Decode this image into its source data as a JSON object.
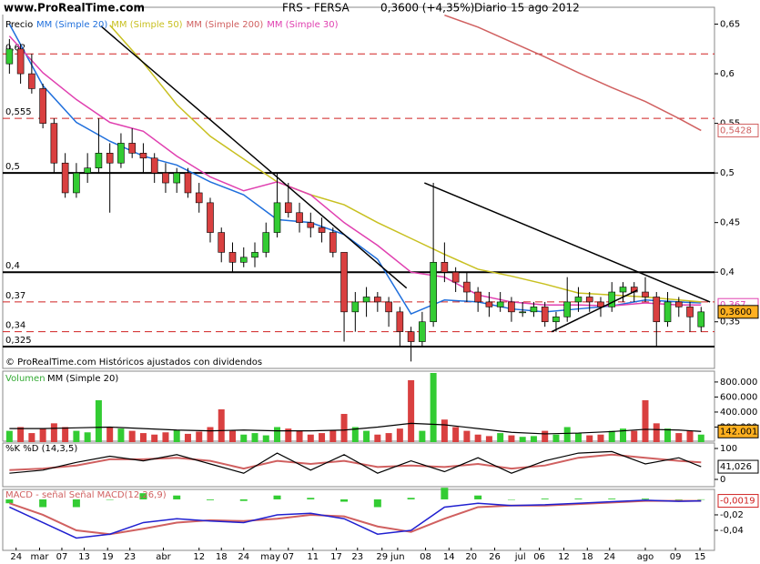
{
  "chart_data": {
    "type": "candlestick",
    "logo": "www.ProRealTime.com",
    "ticker": "FRS - FERSA",
    "last_price": "0,3600 (+4,35%)",
    "period": "Diario",
    "date": "15 ago 2012",
    "footer": "© ProRealTime.com Históricos ajustados con dividendos",
    "price_label": "Precio",
    "up_color": "#33cc33",
    "down_color": "#d94040",
    "xlim": [
      -0.6,
      63.2
    ],
    "xticks": [
      {
        "value": 0.6,
        "label": "24"
      },
      {
        "value": 2.7,
        "label": "mar"
      },
      {
        "value": 4.7,
        "label": "07"
      },
      {
        "value": 6.7,
        "label": "13"
      },
      {
        "value": 8.8,
        "label": "19"
      },
      {
        "value": 10.8,
        "label": "23"
      },
      {
        "value": 13.8,
        "label": "abr"
      },
      {
        "value": 17,
        "label": "12"
      },
      {
        "value": 19,
        "label": "18"
      },
      {
        "value": 21,
        "label": "24"
      },
      {
        "value": 23.4,
        "label": "may"
      },
      {
        "value": 25,
        "label": "07"
      },
      {
        "value": 27.2,
        "label": "11"
      },
      {
        "value": 29.3,
        "label": "17"
      },
      {
        "value": 31.2,
        "label": "23"
      },
      {
        "value": 33.4,
        "label": "29"
      },
      {
        "value": 34.8,
        "label": "jun"
      },
      {
        "value": 37.3,
        "label": "08"
      },
      {
        "value": 39.4,
        "label": "14"
      },
      {
        "value": 41.4,
        "label": "20"
      },
      {
        "value": 43.5,
        "label": "26"
      },
      {
        "value": 45.8,
        "label": "jul"
      },
      {
        "value": 47.5,
        "label": "06"
      },
      {
        "value": 49.7,
        "label": "12"
      },
      {
        "value": 51.8,
        "label": "18"
      },
      {
        "value": 53.8,
        "label": "24"
      },
      {
        "value": 57,
        "label": "ago"
      },
      {
        "value": 59.7,
        "label": "09"
      },
      {
        "value": 61.9,
        "label": "15"
      }
    ],
    "ylim": [
      0.303,
      0.667
    ],
    "yticks": [
      {
        "value": 0.65,
        "label": "0,65"
      },
      {
        "value": 0.6,
        "label": "0,6"
      },
      {
        "value": 0.55,
        "label": "0,55"
      },
      {
        "value": 0.5,
        "label": "0,5"
      },
      {
        "value": 0.45,
        "label": "0,45"
      },
      {
        "value": 0.4,
        "label": "0,4"
      },
      {
        "value": 0.35,
        "label": "0,35"
      }
    ],
    "last_label": "0,3600",
    "ohlc": [
      [
        0.61,
        0.635,
        0.6,
        0.625
      ],
      [
        0.625,
        0.63,
        0.59,
        0.6
      ],
      [
        0.6,
        0.62,
        0.58,
        0.585
      ],
      [
        0.585,
        0.59,
        0.545,
        0.55
      ],
      [
        0.55,
        0.555,
        0.5,
        0.51
      ],
      [
        0.51,
        0.52,
        0.475,
        0.48
      ],
      [
        0.48,
        0.51,
        0.475,
        0.5
      ],
      [
        0.5,
        0.52,
        0.49,
        0.505
      ],
      [
        0.505,
        0.555,
        0.5,
        0.52
      ],
      [
        0.52,
        0.53,
        0.46,
        0.51
      ],
      [
        0.51,
        0.54,
        0.505,
        0.53
      ],
      [
        0.53,
        0.545,
        0.515,
        0.52
      ],
      [
        0.52,
        0.53,
        0.5,
        0.515
      ],
      [
        0.515,
        0.52,
        0.49,
        0.5
      ],
      [
        0.5,
        0.51,
        0.48,
        0.49
      ],
      [
        0.49,
        0.505,
        0.48,
        0.5
      ],
      [
        0.5,
        0.505,
        0.475,
        0.48
      ],
      [
        0.48,
        0.49,
        0.46,
        0.47
      ],
      [
        0.47,
        0.475,
        0.43,
        0.44
      ],
      [
        0.44,
        0.445,
        0.41,
        0.42
      ],
      [
        0.42,
        0.43,
        0.4,
        0.41
      ],
      [
        0.41,
        0.425,
        0.405,
        0.415
      ],
      [
        0.415,
        0.43,
        0.405,
        0.42
      ],
      [
        0.42,
        0.45,
        0.415,
        0.44
      ],
      [
        0.44,
        0.5,
        0.435,
        0.47
      ],
      [
        0.47,
        0.49,
        0.455,
        0.46
      ],
      [
        0.46,
        0.47,
        0.44,
        0.45
      ],
      [
        0.45,
        0.46,
        0.435,
        0.445
      ],
      [
        0.445,
        0.455,
        0.43,
        0.44
      ],
      [
        0.44,
        0.445,
        0.415,
        0.42
      ],
      [
        0.42,
        0.42,
        0.33,
        0.36
      ],
      [
        0.36,
        0.38,
        0.34,
        0.37
      ],
      [
        0.37,
        0.385,
        0.355,
        0.375
      ],
      [
        0.375,
        0.38,
        0.36,
        0.37
      ],
      [
        0.37,
        0.375,
        0.345,
        0.36
      ],
      [
        0.36,
        0.365,
        0.325,
        0.34
      ],
      [
        0.34,
        0.345,
        0.31,
        0.33
      ],
      [
        0.33,
        0.36,
        0.325,
        0.35
      ],
      [
        0.35,
        0.49,
        0.345,
        0.41
      ],
      [
        0.41,
        0.43,
        0.39,
        0.4
      ],
      [
        0.4,
        0.405,
        0.38,
        0.39
      ],
      [
        0.39,
        0.4,
        0.37,
        0.38
      ],
      [
        0.38,
        0.385,
        0.36,
        0.37
      ],
      [
        0.37,
        0.38,
        0.355,
        0.365
      ],
      [
        0.365,
        0.38,
        0.36,
        0.37
      ],
      [
        0.37,
        0.375,
        0.35,
        0.36
      ],
      [
        0.36,
        0.37,
        0.355,
        0.36
      ],
      [
        0.36,
        0.37,
        0.355,
        0.365
      ],
      [
        0.365,
        0.37,
        0.345,
        0.35
      ],
      [
        0.35,
        0.36,
        0.34,
        0.355
      ],
      [
        0.355,
        0.395,
        0.35,
        0.37
      ],
      [
        0.37,
        0.385,
        0.36,
        0.375
      ],
      [
        0.375,
        0.38,
        0.36,
        0.37
      ],
      [
        0.37,
        0.375,
        0.355,
        0.365
      ],
      [
        0.365,
        0.39,
        0.36,
        0.38
      ],
      [
        0.38,
        0.39,
        0.37,
        0.385
      ],
      [
        0.385,
        0.39,
        0.37,
        0.38
      ],
      [
        0.38,
        0.395,
        0.37,
        0.375
      ],
      [
        0.375,
        0.38,
        0.325,
        0.35
      ],
      [
        0.35,
        0.38,
        0.345,
        0.37
      ],
      [
        0.37,
        0.375,
        0.355,
        0.365
      ],
      [
        0.365,
        0.37,
        0.34,
        0.355
      ],
      [
        0.345,
        0.365,
        0.34,
        0.36
      ]
    ],
    "series": [
      {
        "name": "MM (Simple 20)",
        "color": "#1f6fdc",
        "x": [
          0,
          3,
          6,
          9,
          12,
          15,
          18,
          21,
          24,
          27,
          30,
          33,
          36,
          39,
          42,
          45,
          48,
          51,
          54,
          57,
          60,
          62
        ],
        "values": [
          0.65,
          0.588,
          0.551,
          0.532,
          0.517,
          0.508,
          0.491,
          0.478,
          0.453,
          0.45,
          0.438,
          0.413,
          0.358,
          0.372,
          0.37,
          0.363,
          0.36,
          0.363,
          0.366,
          0.372,
          0.37,
          0.369
        ]
      },
      {
        "name": "MM (Simple 50)",
        "color": "#c8c020",
        "x": [
          0,
          3,
          6,
          9,
          12,
          15,
          18,
          21,
          24,
          27,
          30,
          33,
          36,
          39,
          42,
          45,
          48,
          51,
          54,
          57,
          60,
          62
        ],
        "values": [
          null,
          null,
          null,
          0.649,
          0.611,
          0.569,
          0.537,
          0.514,
          0.491,
          0.478,
          0.468,
          0.45,
          0.434,
          0.418,
          0.403,
          0.396,
          0.388,
          0.379,
          0.377,
          0.375,
          0.372,
          0.37
        ]
      },
      {
        "name": "MM (Simple 200)",
        "color": "#d06060",
        "x": [
          0,
          3,
          6,
          9,
          12,
          15,
          18,
          21,
          24,
          27,
          30,
          33,
          36,
          39,
          42,
          45,
          48,
          51,
          54,
          57,
          60,
          62
        ],
        "values": [
          null,
          null,
          null,
          null,
          null,
          null,
          null,
          null,
          null,
          null,
          null,
          null,
          null,
          0.659,
          0.647,
          0.632,
          0.617,
          0.601,
          0.586,
          0.572,
          0.555,
          0.5428
        ],
        "last_label": "0,5428"
      },
      {
        "name": "MM (Simple 30)",
        "color": "#e040b0",
        "x": [
          0,
          3,
          6,
          9,
          12,
          15,
          18,
          21,
          24,
          27,
          30,
          33,
          36,
          39,
          42,
          45,
          48,
          51,
          54,
          57,
          60,
          62
        ],
        "values": [
          0.638,
          0.601,
          0.574,
          0.551,
          0.542,
          0.517,
          0.496,
          0.482,
          0.491,
          0.478,
          0.45,
          0.427,
          0.4,
          0.395,
          0.377,
          0.37,
          0.367,
          0.367,
          0.366,
          0.369,
          0.367,
          0.367
        ],
        "last_label": "0,367"
      }
    ],
    "levels": [
      {
        "value": 0.62,
        "label": "0,62",
        "style": "dashed"
      },
      {
        "value": 0.555,
        "label": "0,555",
        "style": "dashed"
      },
      {
        "value": 0.5,
        "label": "0,5",
        "style": "solid"
      },
      {
        "value": 0.4,
        "label": "0,4",
        "style": "solid"
      },
      {
        "value": 0.37,
        "label": "0,37",
        "style": "dashed"
      },
      {
        "value": 0.34,
        "label": "0,34",
        "style": "dashed"
      },
      {
        "value": 0.325,
        "label": "0,325",
        "style": "solid"
      }
    ],
    "trendlines": [
      [
        8.2,
        0.648,
        35.6,
        0.384
      ],
      [
        37.2,
        0.49,
        62.8,
        0.37
      ],
      [
        48.6,
        0.34,
        56.3,
        0.382
      ]
    ],
    "volume": {
      "title": "Volumen",
      "ma_name": "MM (Simple 20)",
      "ylim": [
        0,
        920000
      ],
      "yticks": [
        {
          "value": 800000,
          "label": "800.000"
        },
        {
          "value": 600000,
          "label": "600.000"
        },
        {
          "value": 400000,
          "label": "400.000"
        },
        {
          "value": 200000,
          "label": "200.000"
        }
      ],
      "values": [
        150000,
        200000,
        120000,
        180000,
        250000,
        200000,
        150000,
        130000,
        557000,
        200000,
        180000,
        150000,
        120000,
        100000,
        130000,
        160000,
        110000,
        140000,
        200000,
        436000,
        150000,
        100000,
        120000,
        90000,
        200000,
        180000,
        150000,
        100000,
        120000,
        160000,
        375000,
        200000,
        150000,
        100000,
        120000,
        180000,
        824000,
        150000,
        920000,
        300000,
        200000,
        150000,
        100000,
        80000,
        120000,
        90000,
        70000,
        80000,
        150000,
        100000,
        200000,
        120000,
        90000,
        100000,
        150000,
        180000,
        150000,
        557000,
        250000,
        180000,
        120000,
        150000,
        100000
      ],
      "ma": {
        "color": "#000000",
        "x": [
          0,
          3,
          6,
          9,
          12,
          15,
          18,
          21,
          24,
          27,
          30,
          33,
          36,
          39,
          42,
          45,
          48,
          51,
          54,
          57,
          60,
          62
        ],
        "values": [
          180000,
          180000,
          190000,
          200000,
          180000,
          160000,
          150000,
          160000,
          150000,
          150000,
          160000,
          200000,
          250000,
          230000,
          180000,
          130000,
          110000,
          120000,
          140000,
          170000,
          160000,
          142001
        ],
        "last_label": "142.001"
      }
    },
    "stochastic": {
      "title": "%K %D (14,3,5)",
      "ylim": [
        -23.5,
        117.6
      ],
      "yticks": [
        100,
        0
      ],
      "x": [
        0,
        3,
        6,
        9,
        12,
        15,
        18,
        21,
        24,
        27,
        30,
        33,
        36,
        39,
        42,
        45,
        48,
        51,
        54,
        57,
        60,
        62
      ],
      "k": {
        "color": "#000000",
        "values": [
          20,
          30,
          55,
          75,
          60,
          80,
          50,
          20,
          85,
          30,
          80,
          20,
          60,
          25,
          70,
          20,
          60,
          85,
          90,
          50,
          70,
          41.026
        ],
        "last_label": "41,026"
      },
      "d": {
        "color": "#d06060",
        "values": [
          30,
          35,
          45,
          65,
          65,
          70,
          60,
          35,
          60,
          50,
          60,
          40,
          45,
          40,
          50,
          35,
          45,
          70,
          80,
          70,
          60,
          55
        ]
      }
    },
    "macd": {
      "title": "MACD - señal Señal MACD(12,26,9)",
      "ylim": [
        -0.0659,
        0.0129
      ],
      "yticks": [
        {
          "value": -0.02,
          "label": "-0,02"
        },
        {
          "value": -0.04,
          "label": "-0,04"
        }
      ],
      "x": [
        0,
        3,
        6,
        9,
        12,
        15,
        18,
        21,
        24,
        27,
        30,
        33,
        36,
        39,
        42,
        45,
        48,
        51,
        54,
        57,
        60,
        62
      ],
      "histogram": {
        "color": "#33cc33",
        "values": [
          -0.005,
          -0.01,
          -0.01,
          0,
          0.008,
          0.005,
          -0.001,
          -0.002,
          0.005,
          0.002,
          -0.003,
          -0.01,
          0.002,
          0.015,
          0.005,
          0,
          0.001,
          0.001,
          0.001,
          0.001,
          -0.0005,
          0.0001
        ]
      },
      "line": {
        "color": "#2020d0",
        "values": [
          -0.01,
          -0.03,
          -0.05,
          -0.045,
          -0.03,
          -0.025,
          -0.028,
          -0.03,
          -0.02,
          -0.018,
          -0.025,
          -0.045,
          -0.04,
          -0.01,
          -0.005,
          -0.008,
          -0.007,
          -0.005,
          -0.003,
          -0.001,
          -0.0025,
          -0.0019
        ],
        "last_label": "-0,0019"
      },
      "signal": {
        "color": "#d06060",
        "values": [
          -0.005,
          -0.02,
          -0.04,
          -0.045,
          -0.038,
          -0.03,
          -0.027,
          -0.028,
          -0.025,
          -0.02,
          -0.022,
          -0.035,
          -0.042,
          -0.025,
          -0.01,
          -0.008,
          -0.008,
          -0.006,
          -0.004,
          -0.002,
          -0.002,
          -0.002
        ]
      }
    }
  }
}
